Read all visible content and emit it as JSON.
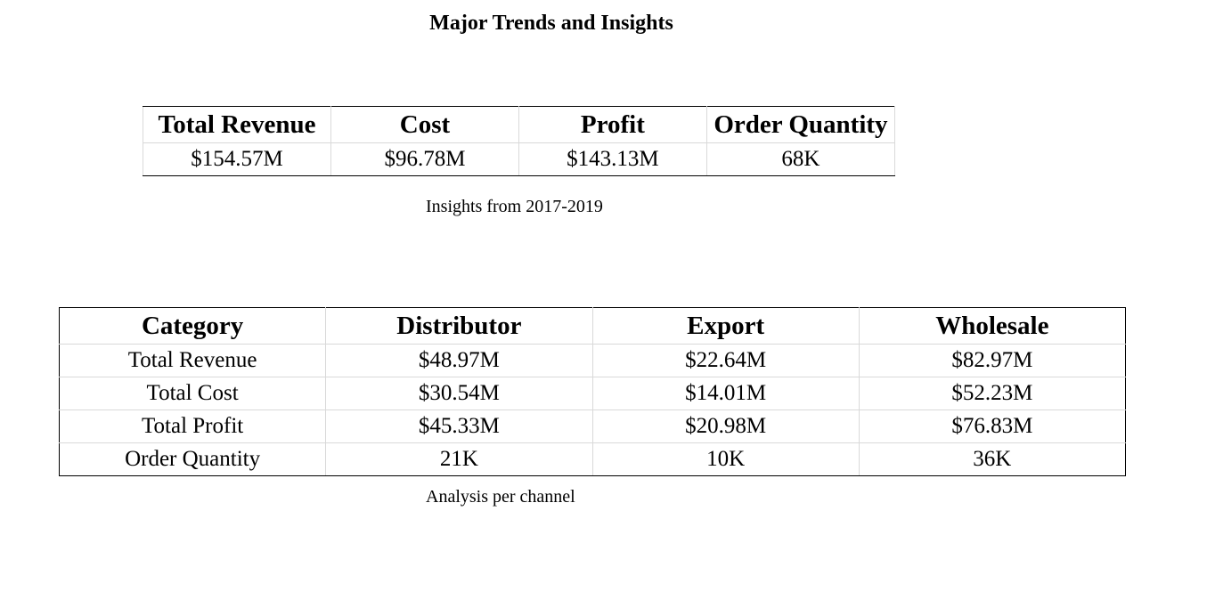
{
  "page": {
    "title": "Major Trends and Insights"
  },
  "summary": {
    "headers": [
      "Total Revenue",
      "Cost",
      "Profit",
      "Order Quantity"
    ],
    "values": [
      "$154.57M",
      "$96.78M",
      "$143.13M",
      "68K"
    ],
    "caption": "Insights from 2017-2019"
  },
  "channels": {
    "headers": [
      "Category",
      "Distributor",
      "Export",
      "Wholesale"
    ],
    "rows": [
      [
        "Total Revenue",
        "$48.97M",
        "$22.64M",
        "$82.97M"
      ],
      [
        "Total Cost",
        "$30.54M",
        "$14.01M",
        "$52.23M"
      ],
      [
        "Total Profit",
        "$45.33M",
        "$20.98M",
        "$76.83M"
      ],
      [
        "Order Quantity",
        "21K",
        "10K",
        "36K"
      ]
    ],
    "caption": "Analysis per channel"
  }
}
